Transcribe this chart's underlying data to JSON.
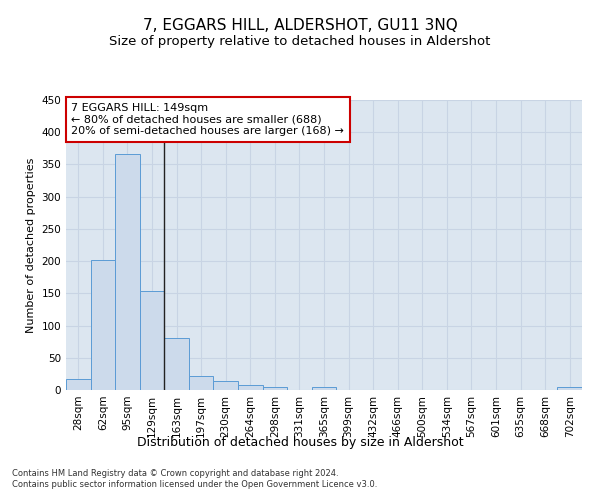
{
  "title": "7, EGGARS HILL, ALDERSHOT, GU11 3NQ",
  "subtitle": "Size of property relative to detached houses in Aldershot",
  "xlabel": "Distribution of detached houses by size in Aldershot",
  "ylabel": "Number of detached properties",
  "footer1": "Contains HM Land Registry data © Crown copyright and database right 2024.",
  "footer2": "Contains public sector information licensed under the Open Government Licence v3.0.",
  "bin_labels": [
    "28sqm",
    "62sqm",
    "95sqm",
    "129sqm",
    "163sqm",
    "197sqm",
    "230sqm",
    "264sqm",
    "298sqm",
    "331sqm",
    "365sqm",
    "399sqm",
    "432sqm",
    "466sqm",
    "500sqm",
    "534sqm",
    "567sqm",
    "601sqm",
    "635sqm",
    "668sqm",
    "702sqm"
  ],
  "bar_values": [
    17,
    201,
    366,
    154,
    80,
    21,
    14,
    7,
    5,
    0,
    5,
    0,
    0,
    0,
    0,
    0,
    0,
    0,
    0,
    0,
    5
  ],
  "bar_color": "#ccdaeb",
  "bar_edge_color": "#5b9bd5",
  "grid_color": "#c8d4e4",
  "background_color": "#dce6f0",
  "vline_x": 3.5,
  "vline_color": "#222222",
  "annotation_text": "7 EGGARS HILL: 149sqm\n← 80% of detached houses are smaller (688)\n20% of semi-detached houses are larger (168) →",
  "annotation_box_color": "#ffffff",
  "annotation_box_edge": "#cc0000",
  "ylim": [
    0,
    450
  ],
  "yticks": [
    0,
    50,
    100,
    150,
    200,
    250,
    300,
    350,
    400,
    450
  ],
  "title_fontsize": 11,
  "subtitle_fontsize": 9.5,
  "xlabel_fontsize": 9,
  "ylabel_fontsize": 8,
  "tick_fontsize": 7.5,
  "annotation_fontsize": 8,
  "footer_fontsize": 6
}
